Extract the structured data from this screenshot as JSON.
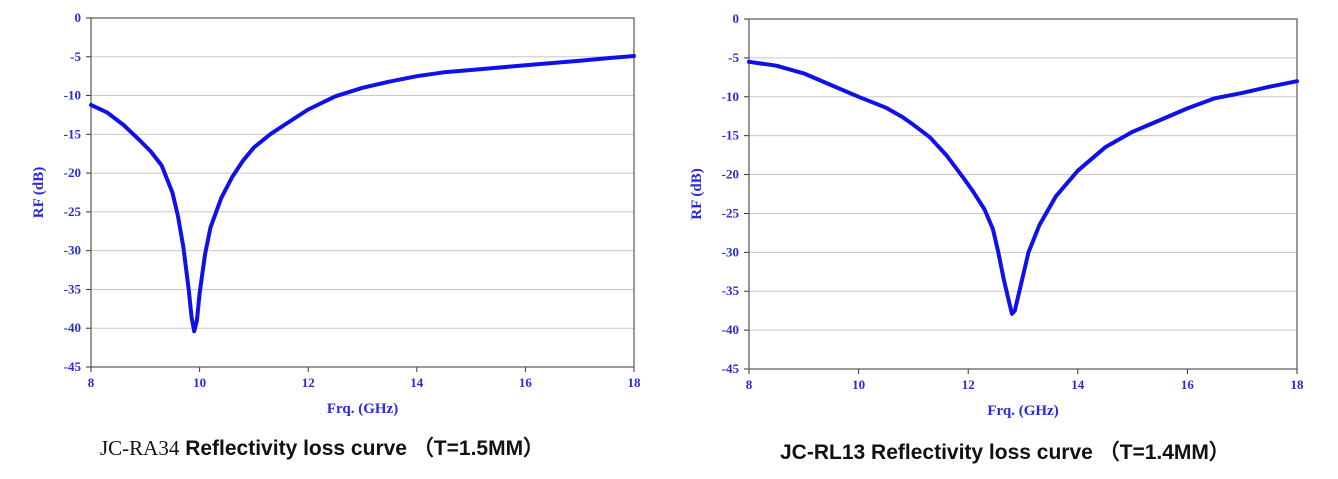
{
  "colors": {
    "curve": "#1010e8",
    "axis_text": "#2a2ad8",
    "grid": "#c8c8c8"
  },
  "chart_data": [
    {
      "type": "line",
      "caption_model": "JC-RA34",
      "caption_text": "Reflectivity loss curve （T=1.5MM）",
      "xlabel": "Frq. (GHz)",
      "ylabel": "RF (dB)",
      "xlim": [
        8,
        18
      ],
      "ylim": [
        -45,
        0
      ],
      "xticks": [
        8,
        10,
        12,
        14,
        16,
        18
      ],
      "yticks": [
        0,
        -5,
        -10,
        -15,
        -20,
        -25,
        -30,
        -35,
        -40,
        -45
      ],
      "grid": true,
      "series": [
        {
          "x": [
            8.0,
            8.3,
            8.6,
            8.9,
            9.1,
            9.3,
            9.5,
            9.6,
            9.7,
            9.8,
            9.85,
            9.9,
            9.95,
            10.0,
            10.1,
            10.2,
            10.4,
            10.6,
            10.8,
            11.0,
            11.3,
            11.6,
            12.0,
            12.5,
            13.0,
            13.5,
            14.0,
            14.5,
            15.0,
            15.5,
            16.0,
            16.5,
            17.0,
            17.5,
            18.0
          ],
          "y": [
            -11.2,
            -12.2,
            -13.8,
            -15.8,
            -17.2,
            -19.0,
            -22.5,
            -25.5,
            -29.5,
            -35.0,
            -38.5,
            -40.4,
            -39.0,
            -35.5,
            -30.5,
            -27.0,
            -23.2,
            -20.5,
            -18.4,
            -16.7,
            -15.0,
            -13.6,
            -11.8,
            -10.1,
            -9.0,
            -8.2,
            -7.5,
            -7.0,
            -6.7,
            -6.4,
            -6.1,
            -5.8,
            -5.5,
            -5.2,
            -4.9
          ]
        }
      ]
    },
    {
      "type": "line",
      "caption_model": "JC-RL13",
      "caption_text": "Reflectivity loss curve （T=1.4MM）",
      "xlabel": "Frq. (GHz)",
      "ylabel": "RF (dB)",
      "xlim": [
        8,
        18
      ],
      "ylim": [
        -45,
        0
      ],
      "xticks": [
        8,
        10,
        12,
        14,
        16,
        18
      ],
      "yticks": [
        0,
        -5,
        -10,
        -15,
        -20,
        -25,
        -30,
        -35,
        -40,
        -45
      ],
      "grid": true,
      "series": [
        {
          "x": [
            8.0,
            8.5,
            9.0,
            9.5,
            10.0,
            10.5,
            10.8,
            11.0,
            11.3,
            11.6,
            11.9,
            12.1,
            12.3,
            12.45,
            12.55,
            12.65,
            12.75,
            12.8,
            12.85,
            12.95,
            13.1,
            13.3,
            13.6,
            14.0,
            14.5,
            15.0,
            15.5,
            16.0,
            16.5,
            17.0,
            17.5,
            18.0
          ],
          "y": [
            -5.5,
            -6.0,
            -7.0,
            -8.5,
            -10.0,
            -11.4,
            -12.6,
            -13.6,
            -15.2,
            -17.5,
            -20.3,
            -22.3,
            -24.5,
            -27.0,
            -30.0,
            -33.5,
            -36.5,
            -37.9,
            -37.5,
            -34.5,
            -30.0,
            -26.5,
            -22.8,
            -19.5,
            -16.5,
            -14.5,
            -13.0,
            -11.5,
            -10.2,
            -9.5,
            -8.7,
            -8.0
          ]
        }
      ]
    }
  ]
}
